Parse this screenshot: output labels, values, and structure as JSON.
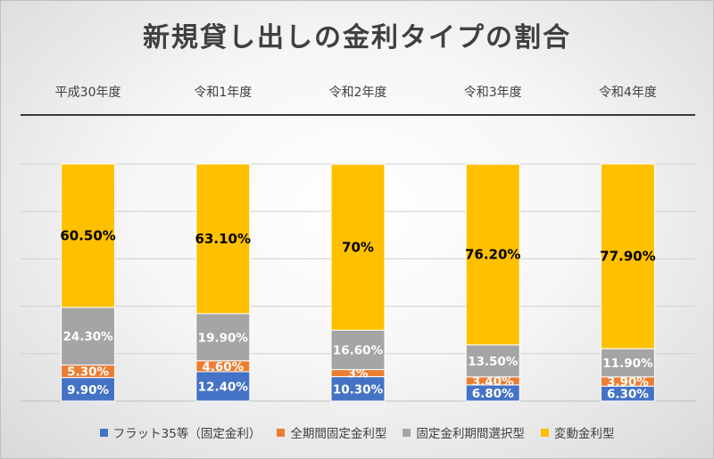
{
  "chart_data": {
    "type": "bar",
    "stacked": true,
    "title": "新規貸し出しの金利タイプの割合",
    "categories": [
      "平成30年度",
      "令和1年度",
      "令和2年度",
      "令和3年度",
      "令和4年度"
    ],
    "series": [
      {
        "name": "フラット35等（固定金利）",
        "color": "#4472c4",
        "values": [
          9.9,
          12.4,
          10.3,
          6.8,
          6.3
        ],
        "labels": [
          "9.90%",
          "12.40%",
          "10.30%",
          "6.80%",
          "6.30%"
        ]
      },
      {
        "name": "全期間固定金利型",
        "color": "#ed7d31",
        "values": [
          5.3,
          4.6,
          3,
          3.4,
          3.9
        ],
        "labels": [
          "5.30%",
          "4.60%",
          "3%",
          "3.40%",
          "3.90%"
        ]
      },
      {
        "name": "固定金利期間選択型",
        "color": "#a5a5a5",
        "values": [
          24.3,
          19.9,
          16.6,
          13.5,
          11.9
        ],
        "labels": [
          "24.30%",
          "19.90%",
          "16.60%",
          "13.50%",
          "11.90%"
        ]
      },
      {
        "name": "変動金利型",
        "color": "#ffc000",
        "values": [
          60.5,
          63.1,
          70,
          76.2,
          77.9
        ],
        "labels": [
          "60.50%",
          "63.10%",
          "70%",
          "76.20%",
          "77.90%"
        ]
      }
    ],
    "ylim": [
      0,
      100
    ],
    "grid": true,
    "legend_position": "bottom"
  }
}
